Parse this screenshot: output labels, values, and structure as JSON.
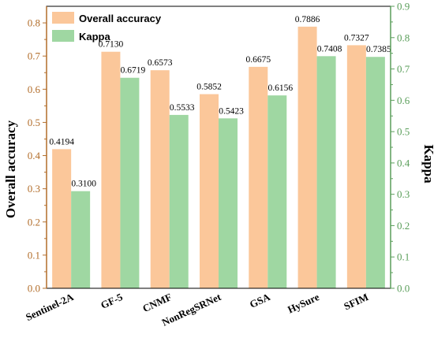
{
  "chart_data": {
    "type": "bar",
    "categories": [
      "Sentinel-2A",
      "GF-5",
      "CNMF",
      "NonRegSRNet",
      "GSA",
      "HySure",
      "SFIM"
    ],
    "series": [
      {
        "name": "Overall accuracy",
        "axis": "left",
        "color": "#fbc79a",
        "values": [
          0.4194,
          0.713,
          0.6573,
          0.5852,
          0.6675,
          0.7886,
          0.7327
        ],
        "labels": [
          "0.4194",
          "0.7130",
          "0.6573",
          "0.5852",
          "0.6675",
          "0.7886",
          "0.7327"
        ]
      },
      {
        "name": "Kappa",
        "axis": "right",
        "color": "#9fd7a2",
        "values": [
          0.31,
          0.6719,
          0.5533,
          0.5423,
          0.6156,
          0.7408,
          0.7385
        ],
        "labels": [
          "0.3100",
          "0.6719",
          "0.5533",
          "0.5423",
          "0.6156",
          "0.7408",
          "0.7385"
        ]
      }
    ],
    "ylabel": "Overall accuracy",
    "ylabel_right": "Kappa",
    "ylim": [
      0.0,
      0.85
    ],
    "ylim_right": [
      0.0,
      0.9
    ],
    "yticks": [
      "0.0",
      "0.1",
      "0.2",
      "0.3",
      "0.4",
      "0.5",
      "0.6",
      "0.7",
      "0.8"
    ],
    "yticks_right": [
      "0.0",
      "0.1",
      "0.2",
      "0.3",
      "0.4",
      "0.5",
      "0.6",
      "0.7",
      "0.8",
      "0.9"
    ],
    "left_axis_color": "#b26d2a",
    "right_axis_color": "#5a9e5a",
    "legend_position": "top-left",
    "grid": false
  }
}
